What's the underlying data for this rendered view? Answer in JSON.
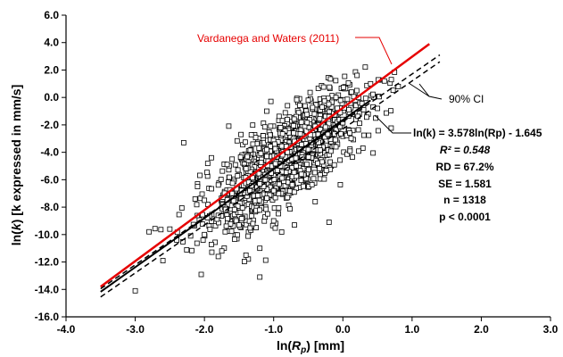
{
  "chart_data": {
    "type": "scatter",
    "xlabel": "ln(R_p) [mm]",
    "ylabel": "ln(k) [k expressed in mm/s]",
    "xlim": [
      -4.0,
      3.0
    ],
    "ylim": [
      -16.0,
      6.0
    ],
    "x_ticks": [
      "-4.0",
      "-3.0",
      "-2.0",
      "-1.0",
      "0.0",
      "1.0",
      "2.0",
      "3.0"
    ],
    "y_ticks": [
      "-16.0",
      "-14.0",
      "-12.0",
      "-10.0",
      "-8.0",
      "-6.0",
      "-4.0",
      "-2.0",
      "0.0",
      "2.0",
      "4.0",
      "6.0"
    ],
    "grid": false,
    "lines": [
      {
        "name": "Vardanega and Waters (2011)",
        "color": "#e60000",
        "style": "solid",
        "x": [
          -3.5,
          1.25
        ],
        "y": [
          -13.8,
          3.9
        ]
      },
      {
        "name": "fit",
        "color": "#000000",
        "style": "solid",
        "x": [
          -3.5,
          0.4
        ],
        "y": [
          -14.17,
          -0.21
        ]
      },
      {
        "name": "90% CI upper",
        "color": "#000000",
        "style": "dashed",
        "x": [
          -3.5,
          1.4
        ],
        "y": [
          -13.95,
          3.1
        ]
      },
      {
        "name": "90% CI lower",
        "color": "#000000",
        "style": "dashed",
        "x": [
          -3.5,
          1.4
        ],
        "y": [
          -14.55,
          2.6
        ]
      }
    ],
    "scatter_summary": {
      "n": 1318,
      "center_x": -0.8,
      "center_y": -4.5
    },
    "scatter_points_sample": [
      [
        -3.0,
        -14.1
      ],
      [
        -2.8,
        -9.8
      ],
      [
        -2.6,
        -11.9
      ],
      [
        -2.5,
        -9.6
      ],
      [
        -2.4,
        -10.4
      ],
      [
        -2.3,
        -3.3
      ],
      [
        -2.2,
        -10.1
      ],
      [
        -2.1,
        -6.3
      ],
      [
        -2.1,
        -6.5
      ],
      [
        -2.0,
        -10.0
      ],
      [
        -2.0,
        -7.5
      ],
      [
        -1.9,
        -4.4
      ],
      [
        -1.8,
        -8.6
      ],
      [
        -1.8,
        -11.6
      ],
      [
        -1.7,
        -9.8
      ],
      [
        -1.6,
        -4.5
      ],
      [
        -1.6,
        -7.0
      ],
      [
        -1.5,
        -9.3
      ],
      [
        -1.4,
        -5.2
      ],
      [
        -1.4,
        -11.5
      ],
      [
        -1.3,
        -3.4
      ],
      [
        -1.3,
        -9.2
      ],
      [
        -1.2,
        -6.3
      ],
      [
        -1.2,
        -11.0
      ],
      [
        -1.2,
        -13.1
      ],
      [
        -1.1,
        -1.0
      ],
      [
        -1.1,
        -4.3
      ],
      [
        -1.0,
        -6.8
      ],
      [
        -1.0,
        -9.0
      ],
      [
        -0.9,
        -2.2
      ],
      [
        -0.9,
        -5.0
      ],
      [
        -0.8,
        -0.6
      ],
      [
        -0.8,
        -4.0
      ],
      [
        -0.8,
        -7.3
      ],
      [
        -0.7,
        -3.2
      ],
      [
        -0.7,
        -9.3
      ],
      [
        -0.6,
        -1.8
      ],
      [
        -0.6,
        -5.6
      ],
      [
        -0.5,
        -0.2
      ],
      [
        -0.5,
        -3.8
      ],
      [
        -0.4,
        -2.1
      ],
      [
        -0.4,
        -7.6
      ],
      [
        -0.3,
        -0.7
      ],
      [
        -0.3,
        -4.7
      ],
      [
        -0.2,
        -1.4
      ],
      [
        -0.2,
        -9.1
      ],
      [
        -0.1,
        0.0
      ],
      [
        -0.1,
        -3.6
      ],
      [
        0.0,
        -1.6
      ],
      [
        0.1,
        -2.6
      ],
      [
        0.2,
        0.5
      ],
      [
        0.3,
        -0.9
      ],
      [
        0.4,
        1.0
      ],
      [
        0.5,
        -0.8
      ],
      [
        0.6,
        1.2
      ],
      [
        0.7,
        1.3
      ],
      [
        0.8,
        0.8
      ]
    ],
    "annotations": {
      "vw_label": "Vardanega and Waters (2011)",
      "ci_label": "90% CI",
      "equation": "ln(k) = 3.578ln(Rp) - 1.645",
      "r2": "R² = 0.548",
      "rd": "RD = 67.2%",
      "se": "SE = 1.581",
      "n": "n = 1318",
      "p": "p < 0.0001"
    }
  },
  "text": {
    "ylabel_pre": "ln(",
    "ylabel_var": "k",
    "ylabel_post": ") [k expressed in mm/s]",
    "xlabel_pre": "ln(",
    "xlabel_var": "R",
    "xlabel_sub": "p",
    "xlabel_post": ") [mm]"
  }
}
